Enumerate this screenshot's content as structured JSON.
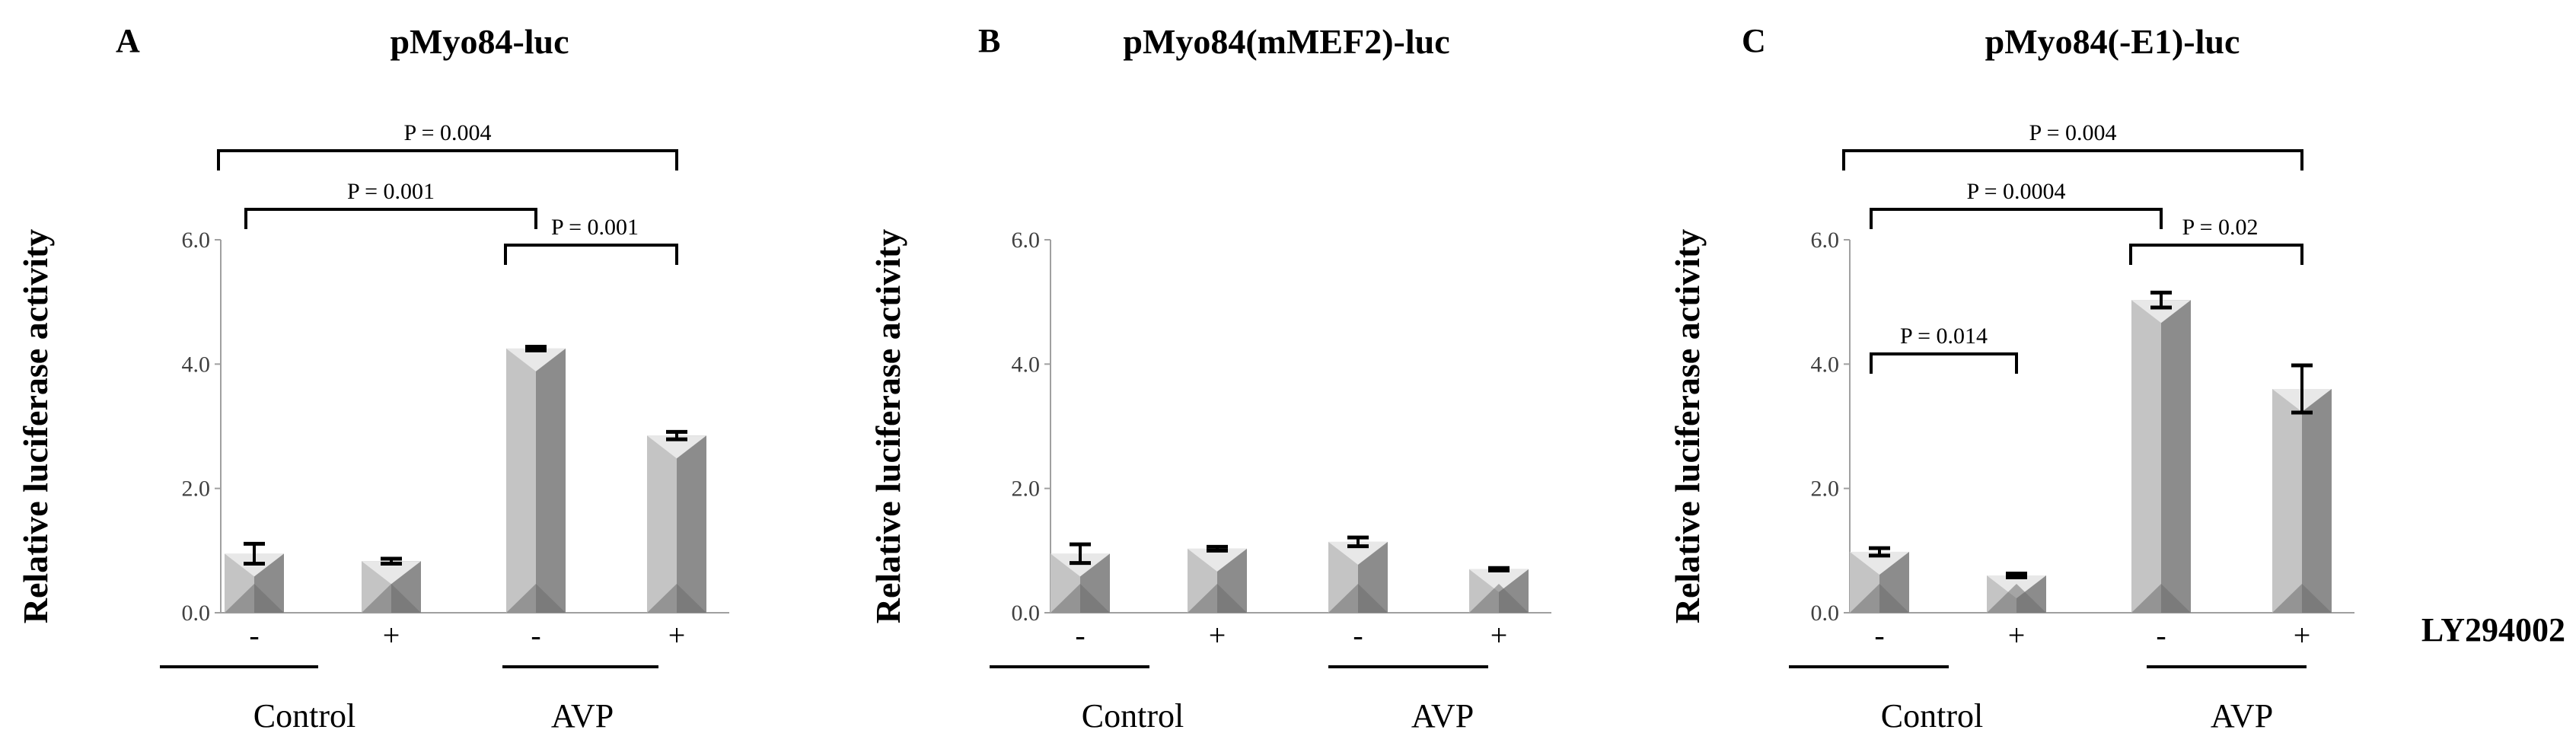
{
  "treatment_label": "LY294002",
  "chart_data": [
    {
      "type": "bar",
      "panel": "A",
      "title": "pMyo84-luc",
      "ylabel": "Relative luciferase activity",
      "ylim": [
        0,
        6
      ],
      "yticks": [
        "0.0",
        "2.0",
        "4.0",
        "6.0"
      ],
      "categories": [
        "-",
        "+",
        "-",
        "+"
      ],
      "groups": [
        "Control",
        "AVP"
      ],
      "values": [
        0.95,
        0.83,
        4.25,
        2.85
      ],
      "errors": [
        0.16,
        0.04,
        0.03,
        0.06
      ],
      "comparisons": [
        {
          "from": 0,
          "to": 3,
          "label": "P = 0.004"
        },
        {
          "from": 0,
          "to": 2,
          "label": "P = 0.001"
        },
        {
          "from": 2,
          "to": 3,
          "label": "P = 0.001"
        }
      ]
    },
    {
      "type": "bar",
      "panel": "B",
      "title": "pMyo84(mMEF2)-luc",
      "ylabel": "Relative luciferase activity",
      "ylim": [
        0,
        6
      ],
      "yticks": [
        "0.0",
        "2.0",
        "4.0",
        "6.0"
      ],
      "categories": [
        "-",
        "+",
        "-",
        "+"
      ],
      "groups": [
        "Control",
        "AVP"
      ],
      "values": [
        0.95,
        1.03,
        1.14,
        0.7
      ],
      "errors": [
        0.15,
        0.03,
        0.07,
        0.02
      ],
      "comparisons": []
    },
    {
      "type": "bar",
      "panel": "C",
      "title": "pMyo84(-E1)-luc",
      "ylabel": "Relative luciferase activity",
      "ylim": [
        0,
        6
      ],
      "yticks": [
        "0.0",
        "2.0",
        "4.0",
        "6.0"
      ],
      "categories": [
        "-",
        "+",
        "-",
        "+"
      ],
      "groups": [
        "Control",
        "AVP"
      ],
      "values": [
        0.98,
        0.6,
        5.03,
        3.6
      ],
      "errors": [
        0.06,
        0.03,
        0.12,
        0.38
      ],
      "comparisons": [
        {
          "from": 0,
          "to": 3,
          "label": "P = 0.004"
        },
        {
          "from": 0,
          "to": 2,
          "label": "P = 0.0004"
        },
        {
          "from": 2,
          "to": 3,
          "label": "P = 0.02"
        },
        {
          "from": 0,
          "to": 1,
          "label": "P = 0.014"
        }
      ]
    }
  ],
  "colors": {
    "bar_light": "#c4c4c4",
    "bar_dark": "#8c8c8c",
    "bar_top": "#e8e8e8",
    "axis": "#a0a0a0",
    "ink": "#000000"
  }
}
